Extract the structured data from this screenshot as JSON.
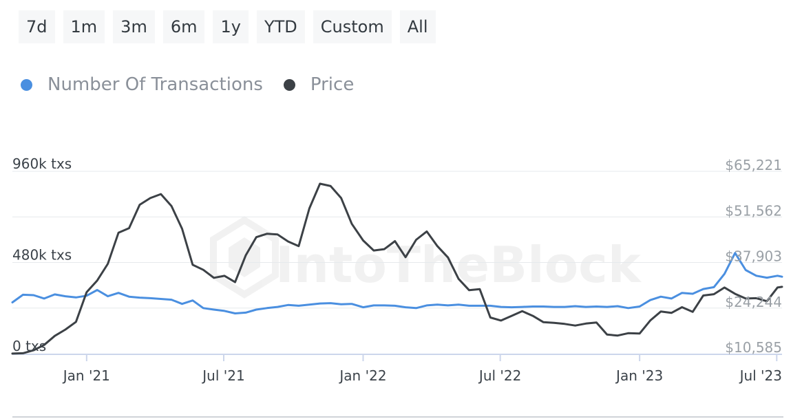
{
  "range_buttons": [
    "7d",
    "1m",
    "3m",
    "6m",
    "1y",
    "YTD",
    "Custom",
    "All"
  ],
  "watermark": "IntoTheBlock",
  "colors": {
    "transactions": "#4a8fe0",
    "price": "#3c4146",
    "grid": "#e6e9ec",
    "axis": "#ccd6eb"
  },
  "chart_data": {
    "type": "line",
    "title": "",
    "legend_position": "top-left",
    "grid": true,
    "x_range": [
      "2020-09-25",
      "2023-07-08"
    ],
    "x_ticks": [
      {
        "date": "2021-01-01",
        "label": "Jan '21"
      },
      {
        "date": "2021-07-01",
        "label": "Jul '21"
      },
      {
        "date": "2022-01-01",
        "label": "Jan '22"
      },
      {
        "date": "2022-07-01",
        "label": "Jul '22"
      },
      {
        "date": "2023-01-01",
        "label": "Jan '23"
      },
      {
        "date": "2023-07-01",
        "label": "Jul '23"
      }
    ],
    "y_left": {
      "range": [
        0,
        960000
      ],
      "ticks": [
        {
          "value": 0,
          "label": "0 txs"
        },
        {
          "value": 480000,
          "label": "480k txs"
        },
        {
          "value": 960000,
          "label": "960k txs"
        }
      ]
    },
    "y_right": {
      "range": [
        10585,
        65221
      ],
      "ticks": [
        {
          "value": 10585,
          "label": "$10,585"
        },
        {
          "value": 24244,
          "label": "$24,244"
        },
        {
          "value": 37903,
          "label": "$37,903"
        },
        {
          "value": 51562,
          "label": "$51,562"
        },
        {
          "value": 65221,
          "label": "$65,221"
        }
      ]
    },
    "series": [
      {
        "name": "Number Of Transactions",
        "axis": "left",
        "x": [
          "2020-09-25",
          "2020-10-09",
          "2020-10-23",
          "2020-11-06",
          "2020-11-20",
          "2020-12-04",
          "2020-12-18",
          "2021-01-01",
          "2021-01-15",
          "2021-01-29",
          "2021-02-12",
          "2021-02-26",
          "2021-03-12",
          "2021-03-26",
          "2021-04-09",
          "2021-04-23",
          "2021-05-07",
          "2021-05-21",
          "2021-06-04",
          "2021-06-18",
          "2021-07-02",
          "2021-07-16",
          "2021-07-30",
          "2021-08-13",
          "2021-08-27",
          "2021-09-10",
          "2021-09-24",
          "2021-10-08",
          "2021-10-22",
          "2021-11-05",
          "2021-11-19",
          "2021-12-03",
          "2021-12-17",
          "2022-01-01",
          "2022-01-15",
          "2022-01-29",
          "2022-02-12",
          "2022-02-26",
          "2022-03-12",
          "2022-03-26",
          "2022-04-09",
          "2022-04-23",
          "2022-05-07",
          "2022-05-21",
          "2022-06-04",
          "2022-06-18",
          "2022-07-02",
          "2022-07-16",
          "2022-07-30",
          "2022-08-13",
          "2022-08-27",
          "2022-09-10",
          "2022-09-24",
          "2022-10-08",
          "2022-10-22",
          "2022-11-05",
          "2022-11-19",
          "2022-12-03",
          "2022-12-17",
          "2023-01-01",
          "2023-01-15",
          "2023-01-29",
          "2023-02-12",
          "2023-02-26",
          "2023-03-12",
          "2023-03-26",
          "2023-04-09",
          "2023-04-23",
          "2023-05-07",
          "2023-05-21",
          "2023-06-04",
          "2023-06-18",
          "2023-07-02",
          "2023-07-08"
        ],
        "values": [
          270000,
          310000,
          308000,
          290000,
          312000,
          302000,
          296000,
          305000,
          335000,
          302000,
          320000,
          300000,
          295000,
          292000,
          288000,
          284000,
          262000,
          280000,
          240000,
          232000,
          225000,
          212000,
          216000,
          232000,
          240000,
          246000,
          256000,
          252000,
          258000,
          264000,
          266000,
          260000,
          262000,
          244000,
          254000,
          254000,
          252000,
          244000,
          240000,
          254000,
          258000,
          254000,
          258000,
          252000,
          252000,
          252000,
          246000,
          244000,
          246000,
          248000,
          248000,
          246000,
          246000,
          250000,
          246000,
          248000,
          246000,
          250000,
          240000,
          248000,
          282000,
          300000,
          290000,
          320000,
          315000,
          340000,
          350000,
          420000,
          530000,
          440000,
          410000,
          400000,
          410000,
          405000
        ]
      },
      {
        "name": "Price",
        "axis": "right",
        "x": [
          "2020-09-25",
          "2020-10-09",
          "2020-10-23",
          "2020-11-06",
          "2020-11-20",
          "2020-12-04",
          "2020-12-18",
          "2021-01-01",
          "2021-01-15",
          "2021-01-29",
          "2021-02-12",
          "2021-02-26",
          "2021-03-12",
          "2021-03-26",
          "2021-04-09",
          "2021-04-23",
          "2021-05-07",
          "2021-05-21",
          "2021-06-04",
          "2021-06-18",
          "2021-07-02",
          "2021-07-16",
          "2021-07-30",
          "2021-08-13",
          "2021-08-27",
          "2021-09-10",
          "2021-09-24",
          "2021-10-08",
          "2021-10-22",
          "2021-11-05",
          "2021-11-19",
          "2021-12-03",
          "2021-12-17",
          "2022-01-01",
          "2022-01-15",
          "2022-01-29",
          "2022-02-12",
          "2022-02-26",
          "2022-03-12",
          "2022-03-26",
          "2022-04-09",
          "2022-04-23",
          "2022-05-07",
          "2022-05-21",
          "2022-06-04",
          "2022-06-18",
          "2022-07-02",
          "2022-07-16",
          "2022-07-30",
          "2022-08-13",
          "2022-08-27",
          "2022-09-10",
          "2022-09-24",
          "2022-10-08",
          "2022-10-22",
          "2022-11-05",
          "2022-11-19",
          "2022-12-03",
          "2022-12-17",
          "2023-01-01",
          "2023-01-15",
          "2023-01-29",
          "2023-02-12",
          "2023-02-26",
          "2023-03-12",
          "2023-03-26",
          "2023-04-09",
          "2023-04-23",
          "2023-05-07",
          "2023-05-21",
          "2023-06-04",
          "2023-06-18",
          "2023-07-02",
          "2023-07-08"
        ],
        "values": [
          10600,
          10700,
          11600,
          13200,
          15900,
          17800,
          20100,
          29000,
          32500,
          37500,
          46800,
          48200,
          55200,
          57200,
          58400,
          54800,
          48000,
          37200,
          35700,
          33300,
          33900,
          32000,
          40000,
          45500,
          46500,
          46300,
          44200,
          42800,
          54100,
          61500,
          60800,
          57200,
          49500,
          44500,
          41500,
          41900,
          44300,
          39500,
          44700,
          47200,
          42800,
          39400,
          33000,
          29600,
          29900,
          21400,
          20500,
          21900,
          23300,
          21900,
          20000,
          19800,
          19500,
          19000,
          19600,
          19900,
          16300,
          16000,
          16700,
          16600,
          20500,
          23200,
          22800,
          24500,
          23100,
          28000,
          28400,
          30400,
          28500,
          27100,
          27200,
          26300,
          30400,
          30600
        ]
      }
    ]
  }
}
